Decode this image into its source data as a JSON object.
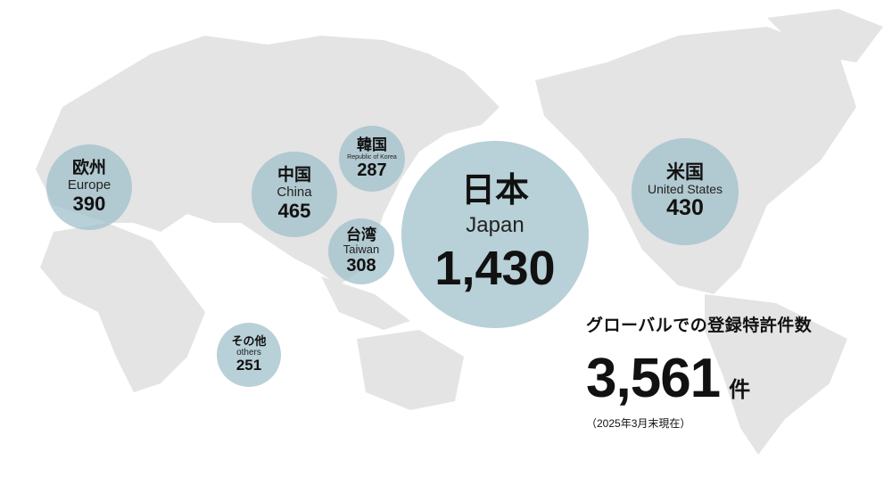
{
  "colors": {
    "map_land": "#e4e4e4",
    "bubble": "#a0c0c9",
    "text": "#111111"
  },
  "regions": [
    {
      "id": "europe",
      "name_ja": "欧州",
      "name_en": "Europe",
      "count": "390",
      "value": 390
    },
    {
      "id": "china",
      "name_ja": "中国",
      "name_en": "China",
      "count": "465",
      "value": 465
    },
    {
      "id": "korea",
      "name_ja": "韓国",
      "name_en": "Republic of Korea",
      "count": "287",
      "value": 287
    },
    {
      "id": "taiwan",
      "name_ja": "台湾",
      "name_en": "Taiwan",
      "count": "308",
      "value": 308
    },
    {
      "id": "japan",
      "name_ja": "日本",
      "name_en": "Japan",
      "count": "1,430",
      "value": 1430
    },
    {
      "id": "us",
      "name_ja": "米国",
      "name_en": "United States",
      "count": "430",
      "value": 430
    },
    {
      "id": "others",
      "name_ja": "その他",
      "name_en": "others",
      "count": "251",
      "value": 251
    }
  ],
  "summary": {
    "title": "グローバルでの登録特許件数",
    "total": "3,561",
    "unit": "件",
    "as_of": "（2025年3月末現在）"
  }
}
